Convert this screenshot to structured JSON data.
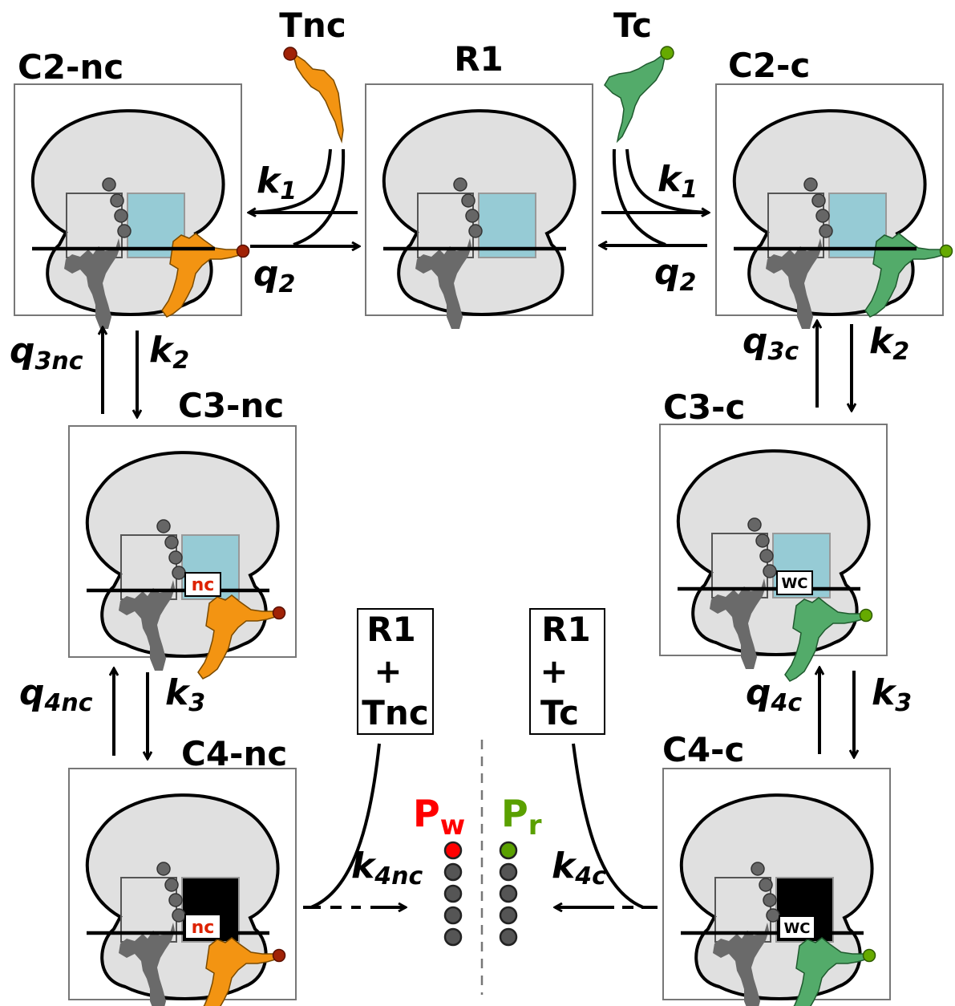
{
  "states": {
    "r1": "R1",
    "c2nc": "C2-nc",
    "c2c": "C2-c",
    "c3nc": "C3-nc",
    "c3c": "C3-c",
    "c4nc": "C4-nc",
    "c4c": "C4-c"
  },
  "trnas": {
    "nc": "Tnc",
    "c": "Tc"
  },
  "rates": {
    "k": "k",
    "q": "q",
    "k1_sub": "1",
    "q2_sub": "2",
    "k2_sub": "2",
    "k3_sub": "3",
    "q3nc_sub": "3nc",
    "q3c_sub": "3c",
    "q4nc_sub": "4nc",
    "q4c_sub": "4c",
    "k4nc_sub": "4nc",
    "k4c_sub": "4c"
  },
  "products": {
    "left_box": [
      "R1",
      "+",
      "Tnc"
    ],
    "right_box": [
      "R1",
      "+",
      "Tc"
    ],
    "pw": "P",
    "pw_sub": "w",
    "pr": "P",
    "pr_sub": "r"
  },
  "tags": {
    "nc": "nc",
    "wc": "WC"
  },
  "colors": {
    "orange": "#f39412",
    "orange_dot": "#a02206",
    "green": "#53ab6a",
    "green_dot": "#66aa00",
    "blue_site": "#96cbd5",
    "ribosome": "#e0e0e0",
    "gray_trna": "#6a6a6a",
    "pw": "#ff0000",
    "pr": "#5aa000"
  }
}
